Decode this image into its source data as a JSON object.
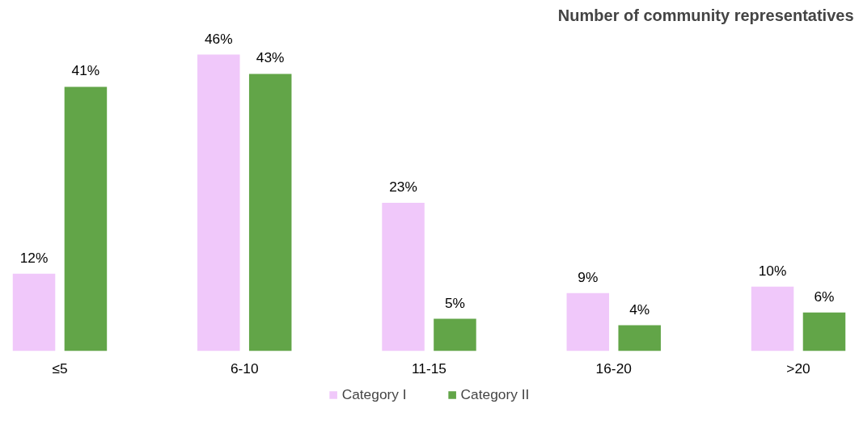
{
  "chart_data": {
    "type": "bar",
    "title": "Number of community representatives",
    "categories": [
      "≤5",
      "6-10",
      "11-15",
      "16-20",
      ">20"
    ],
    "series": [
      {
        "name": "Category I",
        "color": "#f0c8fa",
        "values": [
          12,
          46,
          23,
          9,
          10
        ],
        "value_labels": [
          "12%",
          "46%",
          "23%",
          "9%",
          "10%"
        ]
      },
      {
        "name": "Category II",
        "color": "#62a548",
        "values": [
          41,
          43,
          5,
          4,
          6
        ],
        "value_labels": [
          "41%",
          "43%",
          "5%",
          "4%",
          "6%"
        ]
      }
    ],
    "legend": "bottom",
    "grid": false
  }
}
